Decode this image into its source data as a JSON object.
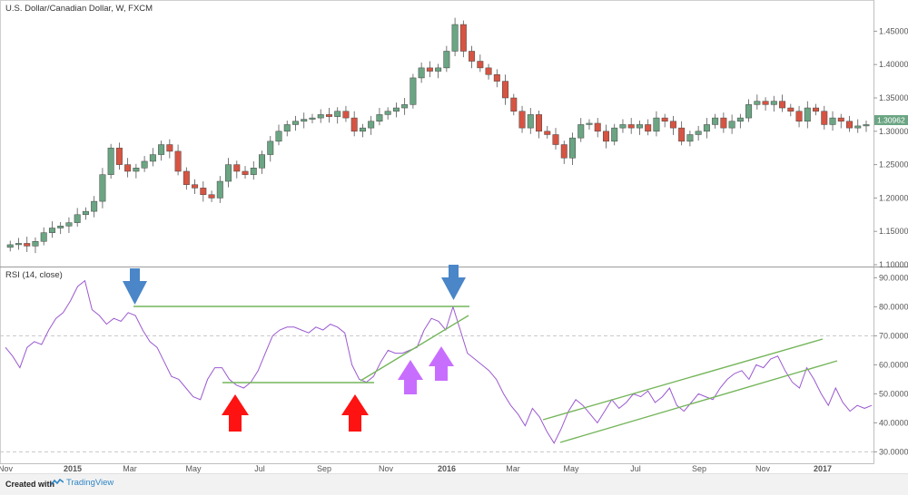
{
  "chart_data": [
    {
      "type": "candlestick",
      "title": "U.S. Dollar/Canadian Dollar, W, FXCM",
      "last_price_label": "1.30962",
      "y_ticks": [
        "1.45000",
        "1.40000",
        "1.35000",
        "1.30000",
        "1.25000",
        "1.20000",
        "1.15000",
        "1.10000"
      ],
      "ylim": [
        1.1,
        1.475
      ],
      "x_ticks": [
        "Nov",
        "2015",
        "Mar",
        "May",
        "Jul",
        "Sep",
        "Nov",
        "2016",
        "Mar",
        "May",
        "Jul",
        "Sep",
        "Nov",
        "2017"
      ],
      "closes": [
        1.13,
        1.132,
        1.128,
        1.135,
        1.148,
        1.155,
        1.158,
        1.163,
        1.175,
        1.18,
        1.195,
        1.235,
        1.275,
        1.25,
        1.24,
        1.245,
        1.255,
        1.265,
        1.28,
        1.27,
        1.24,
        1.22,
        1.215,
        1.205,
        1.2,
        1.225,
        1.25,
        1.24,
        1.235,
        1.245,
        1.265,
        1.285,
        1.3,
        1.31,
        1.315,
        1.318,
        1.32,
        1.325,
        1.322,
        1.33,
        1.32,
        1.3,
        1.305,
        1.315,
        1.325,
        1.33,
        1.335,
        1.34,
        1.38,
        1.395,
        1.39,
        1.395,
        1.42,
        1.46,
        1.42,
        1.405,
        1.395,
        1.385,
        1.375,
        1.35,
        1.33,
        1.305,
        1.325,
        1.3,
        1.295,
        1.28,
        1.26,
        1.29,
        1.31,
        1.312,
        1.3,
        1.285,
        1.305,
        1.31,
        1.305,
        1.31,
        1.3,
        1.32,
        1.315,
        1.305,
        1.285,
        1.295,
        1.3,
        1.31,
        1.32,
        1.305,
        1.315,
        1.32,
        1.34,
        1.345,
        1.34,
        1.345,
        1.335,
        1.33,
        1.315,
        1.335,
        1.33,
        1.31,
        1.32,
        1.315,
        1.305,
        1.308,
        1.31
      ],
      "colors": {
        "up": "#6ba583",
        "down": "#d75442"
      }
    },
    {
      "type": "line",
      "title": "RSI (14, close)",
      "y_ticks": [
        "90.0000",
        "80.0000",
        "70.0000",
        "60.0000",
        "50.0000",
        "40.0000",
        "30.0000"
      ],
      "ylim": [
        27,
        92
      ],
      "dashed_levels": [
        70,
        30
      ],
      "values": [
        66,
        63,
        59,
        66,
        68,
        67,
        72,
        76,
        78,
        82,
        87,
        89,
        79,
        77,
        74,
        76,
        75,
        78,
        77,
        72,
        68,
        66,
        61,
        56,
        55,
        52,
        49,
        48,
        55,
        59,
        59,
        55,
        53,
        52,
        54,
        58,
        64,
        70,
        72,
        73,
        73,
        72,
        71,
        73,
        72,
        74,
        73,
        71,
        60,
        55,
        54,
        56,
        61,
        65,
        64,
        64,
        65,
        66,
        72,
        76,
        75,
        72,
        80,
        72,
        64,
        62,
        60,
        58,
        55,
        50,
        46,
        43,
        39,
        45,
        42,
        37,
        33,
        38,
        44,
        48,
        46,
        43,
        40,
        44,
        48,
        45,
        47,
        50,
        49,
        51,
        47,
        49,
        52,
        46,
        44,
        47,
        50,
        49,
        48,
        52,
        55,
        57,
        58,
        55,
        60,
        59,
        62,
        63,
        58,
        54,
        52,
        59,
        55,
        50,
        46,
        52,
        47,
        44,
        46,
        45,
        46
      ],
      "line_color": "#9b59d0",
      "trendline_color": "#74b55a",
      "arrow_colors": {
        "blue": "#4a86c8",
        "red": "#ff1212",
        "purple": "#c86eff"
      }
    }
  ],
  "footer": {
    "created_label": "Created with",
    "brand_label": "TradingView"
  }
}
